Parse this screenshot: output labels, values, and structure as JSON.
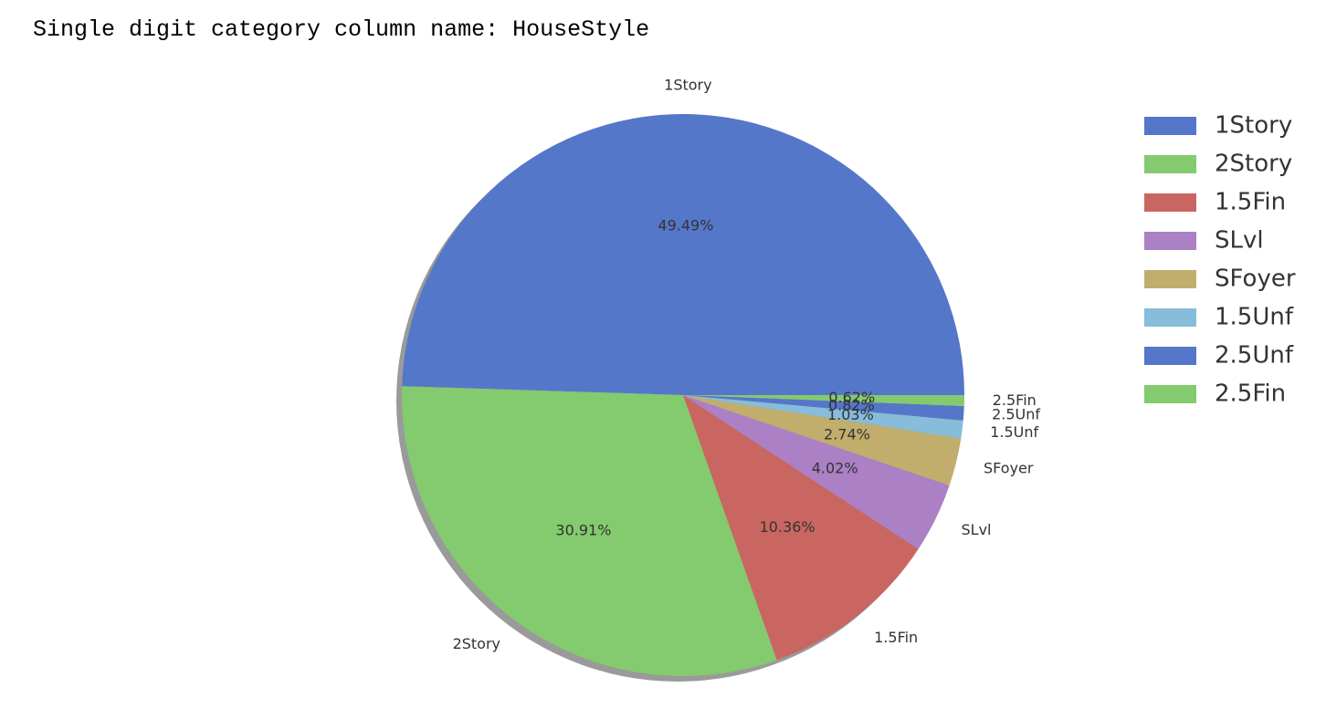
{
  "caption": "Single digit category column name: HouseStyle",
  "chart_data": {
    "type": "pie",
    "categories": [
      "1Story",
      "2Story",
      "1.5Fin",
      "SLvl",
      "SFoyer",
      "1.5Unf",
      "2.5Unf",
      "2.5Fin"
    ],
    "values": [
      49.49,
      30.91,
      10.36,
      4.02,
      2.74,
      1.03,
      0.82,
      0.62
    ],
    "percent_labels": [
      "49.49%",
      "30.91%",
      "10.36%",
      "4.02%",
      "2.74%",
      "1.03%",
      "0.82%",
      "0.62%"
    ],
    "colors": [
      "#5577c9",
      "#84ca6e",
      "#c96661",
      "#ab80c4",
      "#c1ae6c",
      "#87bcdb",
      "#5577c9",
      "#84ca6e"
    ],
    "shadow": true,
    "legend": {
      "placement": "right",
      "entries": [
        "1Story",
        "2Story",
        "1.5Fin",
        "SLvl",
        "SFoyer",
        "1.5Unf",
        "2.5Unf",
        "2.5Fin"
      ]
    }
  }
}
